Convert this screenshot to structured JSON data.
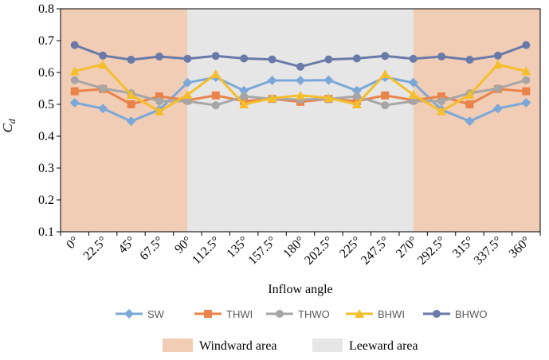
{
  "chart_data": {
    "type": "line",
    "xlabel": "Inflow angle",
    "ylabel_main": "C",
    "ylabel_sub": "d",
    "ylim": [
      0.1,
      0.8
    ],
    "yticks": [
      "0.1",
      "0.2",
      "0.3",
      "0.4",
      "0.5",
      "0.6",
      "0.7",
      "0.8"
    ],
    "categories": [
      "0°",
      "22.5°",
      "45°",
      "67.5°",
      "90°",
      "112.5°",
      "135°",
      "157.5°",
      "180°",
      "202.5°",
      "225°",
      "247.5°",
      "270°",
      "292.5°",
      "315°",
      "337.5°",
      "360°"
    ],
    "regions": [
      {
        "label": "Windward area",
        "from": "0°",
        "to": "90°",
        "color": "#F1CDB6"
      },
      {
        "label": "Leeward area",
        "from": "90°",
        "to": "270°",
        "color": "#E6E6E6"
      },
      {
        "label": "Windward area",
        "from": "270°",
        "to": "360°",
        "color": "#F1CDB6"
      }
    ],
    "series": [
      {
        "name": "SW",
        "color": "#7BA8D8",
        "marker": "diamond",
        "values": [
          0.505,
          0.487,
          0.447,
          0.483,
          0.568,
          0.585,
          0.543,
          0.575,
          0.575,
          0.576,
          0.543,
          0.585,
          0.568,
          0.483,
          0.447,
          0.487,
          0.505
        ]
      },
      {
        "name": "THWI",
        "color": "#E9834A",
        "marker": "square",
        "values": [
          0.541,
          0.548,
          0.5,
          0.525,
          0.513,
          0.528,
          0.51,
          0.517,
          0.508,
          0.517,
          0.51,
          0.528,
          0.513,
          0.525,
          0.5,
          0.548,
          0.541
        ]
      },
      {
        "name": "THWO",
        "color": "#A6A6A6",
        "marker": "circle",
        "values": [
          0.576,
          0.55,
          0.535,
          0.51,
          0.51,
          0.497,
          0.525,
          0.517,
          0.515,
          0.517,
          0.525,
          0.497,
          0.51,
          0.51,
          0.535,
          0.55,
          0.576
        ]
      },
      {
        "name": "BHWI",
        "color": "#F4BE2C",
        "marker": "triangle",
        "values": [
          0.604,
          0.625,
          0.53,
          0.478,
          0.53,
          0.595,
          0.5,
          0.519,
          0.528,
          0.52,
          0.5,
          0.595,
          0.53,
          0.478,
          0.53,
          0.625,
          0.604
        ]
      },
      {
        "name": "BHWO",
        "color": "#6A7AA8",
        "marker": "circle",
        "values": [
          0.686,
          0.653,
          0.64,
          0.65,
          0.643,
          0.652,
          0.644,
          0.641,
          0.618,
          0.641,
          0.644,
          0.652,
          0.643,
          0.65,
          0.64,
          0.653,
          0.686
        ]
      }
    ],
    "legend_position": "bottom"
  }
}
